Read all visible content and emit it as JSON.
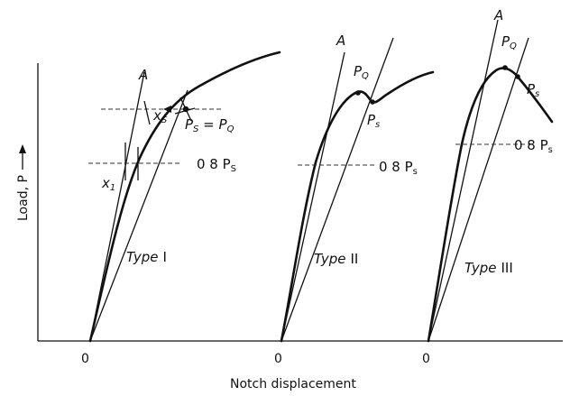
{
  "axes": {
    "xlabel": "Notch displacement",
    "ylabel": "Load, P",
    "origins": [
      "0",
      "0",
      "0"
    ]
  },
  "panels": [
    {
      "type_word": "Type",
      "type_num": "I",
      "secant_line_label": "A",
      "labels": {
        "ps_eq_pq_main": "P",
        "ps_eq_pq_sub1": "S",
        "ps_eq_pq_mid": " = P",
        "ps_eq_pq_sub2": "Q",
        "eight_tenths": "0 8 P",
        "eight_tenths_sub": "S",
        "x1": "x",
        "x1_sub": "1",
        "xs": "x",
        "xs_sub": "S"
      }
    },
    {
      "type_word": "Type",
      "type_num": "II",
      "secant_line_label": "A",
      "labels": {
        "pq": "P",
        "pq_sub": "Q",
        "ps": "P",
        "ps_sub": "s",
        "eight_tenths": "0 8 P",
        "eight_tenths_sub": "s"
      }
    },
    {
      "type_word": "Type",
      "type_num": "III",
      "secant_line_label": "A",
      "labels": {
        "pq": "P",
        "pq_sub": "Q",
        "ps": "P",
        "ps_sub": "s",
        "eight_tenths": "0 8 P",
        "eight_tenths_sub": "s"
      }
    }
  ]
}
